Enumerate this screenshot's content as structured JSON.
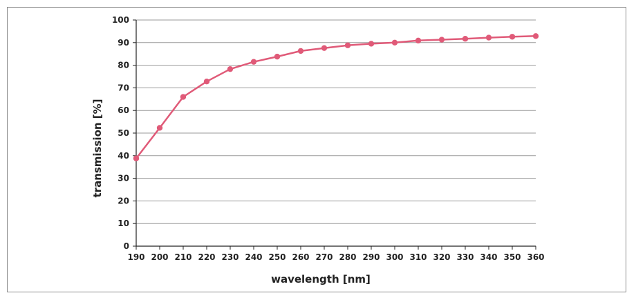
{
  "chart_data": {
    "type": "line",
    "xlabel": "wavelength [nm]",
    "ylabel": "transmission [%]",
    "xlim": [
      190,
      360
    ],
    "ylim": [
      0,
      100
    ],
    "x_ticks": [
      190,
      200,
      210,
      220,
      230,
      240,
      250,
      260,
      270,
      280,
      290,
      300,
      310,
      320,
      330,
      340,
      350,
      360
    ],
    "y_ticks": [
      0,
      10,
      20,
      30,
      40,
      50,
      60,
      70,
      80,
      90,
      100
    ],
    "grid": "horizontal",
    "series": [
      {
        "color": "#e05a78",
        "x": [
          190,
          200,
          210,
          220,
          230,
          240,
          250,
          260,
          270,
          280,
          290,
          300,
          310,
          320,
          330,
          340,
          350,
          360
        ],
        "y": [
          38.8,
          52.3,
          66.0,
          72.8,
          78.3,
          81.5,
          83.8,
          86.3,
          87.6,
          88.8,
          89.5,
          90.0,
          90.9,
          91.3,
          91.7,
          92.2,
          92.6,
          92.9
        ]
      }
    ]
  }
}
